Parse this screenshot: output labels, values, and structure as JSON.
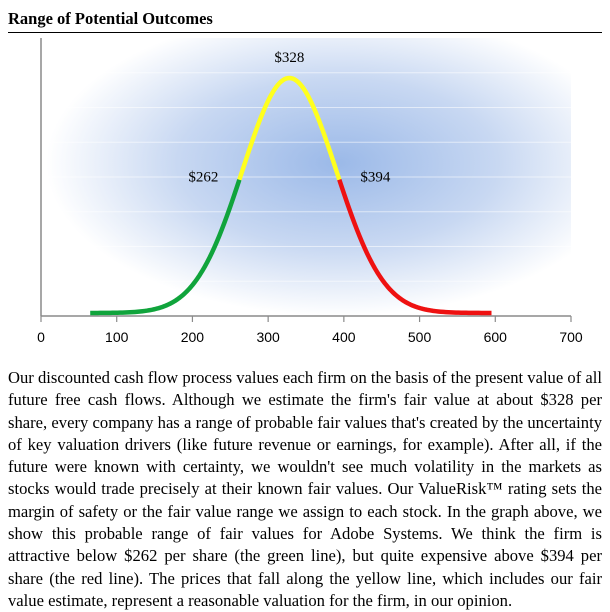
{
  "title": "Range of Potential Outcomes",
  "chart_data": {
    "type": "line",
    "xlim": [
      0,
      700
    ],
    "x_ticks": [
      0,
      100,
      200,
      300,
      400,
      500,
      600,
      700
    ],
    "x_tick_labels": [
      "0",
      "100",
      "200",
      "300",
      "400",
      "500",
      "600",
      "700"
    ],
    "distribution": {
      "mean": 328,
      "std": 62,
      "x_min": 65,
      "x_max": 595
    },
    "series": [
      {
        "segment": "green",
        "color": "#10a43c",
        "x_range": [
          65,
          262
        ]
      },
      {
        "segment": "yellow",
        "color": "#ffff1e",
        "x_range": [
          262,
          394
        ]
      },
      {
        "segment": "red",
        "color": "#ee1111",
        "x_range": [
          394,
          595
        ]
      }
    ],
    "annotations": [
      {
        "x": 328,
        "text": "$328"
      },
      {
        "x": 262,
        "text": "$262"
      },
      {
        "x": 394,
        "text": "$394"
      }
    ],
    "grid": true,
    "background": "radial blue gradient"
  },
  "paragraph": "Our discounted cash flow process values each firm on the basis of the present value of all future free cash flows. Although we estimate the firm's fair value at about $328 per share, every company has a range of probable fair values that's created by the uncertainty of key valuation drivers (like future revenue or earnings, for example). After all, if the future were known with certainty, we wouldn't see much volatility in the markets as stocks would trade precisely at their known fair values. Our ValueRisk™ rating sets the margin of safety or the fair value range we assign to each stock. In the graph above, we show this probable range of fair values for Adobe Systems. We think the firm is attractive below $262 per share (the green line), but quite expensive above $394 per share (the red line). The prices that fall along the yellow line, which includes our fair value estimate, represent a reasonable valuation for the firm, in our opinion."
}
